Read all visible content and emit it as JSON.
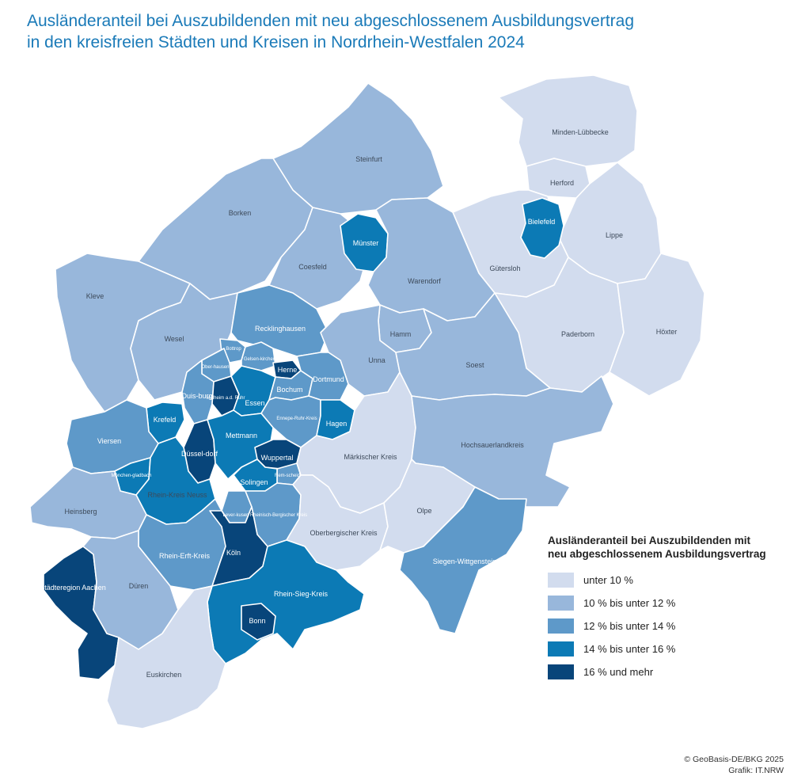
{
  "title": {
    "line1": "Ausländeranteil bei Auszubildenden mit neu abgeschlossenem Ausbildungsvertrag",
    "line2": "in den kreisfreien Städten und Kreisen in Nordrhein-Westfalen 2024"
  },
  "colors": {
    "c1": "#d2dcee",
    "c2": "#98b7db",
    "c3": "#5e99c9",
    "c4": "#0c7ab5",
    "c5": "#08457a"
  },
  "legend": {
    "title_line1": "Ausländeranteil bei Auszubildenden mit",
    "title_line2": "neu abgeschlossenem Ausbildungsvertrag",
    "items": [
      {
        "label": "unter 10 %",
        "color": "#d2dcee"
      },
      {
        "label": "10 % bis unter 12 %",
        "color": "#98b7db"
      },
      {
        "label": "12 % bis unter 14 %",
        "color": "#5e99c9"
      },
      {
        "label": "14 % bis unter 16 %",
        "color": "#0c7ab5"
      },
      {
        "label": "16 % und mehr",
        "color": "#08457a"
      }
    ]
  },
  "regions": {
    "minden_luebbecke": {
      "label": "Minden-Lübbecke",
      "class": "c1"
    },
    "herford": {
      "label": "Herford",
      "class": "c1"
    },
    "bielefeld": {
      "label": "Bielefeld",
      "class": "c4"
    },
    "lippe": {
      "label": "Lippe",
      "class": "c1"
    },
    "guetersloh": {
      "label": "Gütersloh",
      "class": "c1"
    },
    "paderborn": {
      "label": "Paderborn",
      "class": "c1"
    },
    "hoexter": {
      "label": "Höxter",
      "class": "c1"
    },
    "steinfurt": {
      "label": "Steinfurt",
      "class": "c2"
    },
    "borken": {
      "label": "Borken",
      "class": "c2"
    },
    "coesfeld": {
      "label": "Coesfeld",
      "class": "c2"
    },
    "muenster": {
      "label": "Münster",
      "class": "c4"
    },
    "warendorf": {
      "label": "Warendorf",
      "class": "c2"
    },
    "kleve": {
      "label": "Kleve",
      "class": "c2"
    },
    "wesel": {
      "label": "Wesel",
      "class": "c2"
    },
    "recklinghausen": {
      "label": "Recklinghausen",
      "class": "c3"
    },
    "hamm": {
      "label": "Hamm",
      "class": "c2"
    },
    "unna": {
      "label": "Unna",
      "class": "c2"
    },
    "soest": {
      "label": "Soest",
      "class": "c2"
    },
    "bottrop": {
      "label": "Bottrop",
      "class": "c3"
    },
    "oberhausen": {
      "label": "Ober-hausen",
      "class": "c3"
    },
    "gelsenkirchen": {
      "label": "Gelsen-kirchen",
      "class": "c3"
    },
    "herne": {
      "label": "Herne",
      "class": "c5"
    },
    "duisburg": {
      "label": "Duis-burg",
      "class": "c3"
    },
    "muelheim": {
      "label": "Mülheim a.d. Ruhr",
      "class": "c5"
    },
    "essen": {
      "label": "Essen",
      "class": "c4"
    },
    "bochum": {
      "label": "Bochum",
      "class": "c3"
    },
    "dortmund": {
      "label": "Dortmund",
      "class": "c3"
    },
    "ennepe_ruhr": {
      "label": "Ennepe-Ruhr-Kreis",
      "class": "c3"
    },
    "hagen": {
      "label": "Hagen",
      "class": "c4"
    },
    "krefeld": {
      "label": "Krefeld",
      "class": "c4"
    },
    "viersen": {
      "label": "Viersen",
      "class": "c3"
    },
    "duesseldorf": {
      "label": "Düssel-dorf",
      "class": "c5"
    },
    "mettmann": {
      "label": "Mettmann",
      "class": "c4"
    },
    "wuppertal": {
      "label": "Wuppertal",
      "class": "c5"
    },
    "remscheid": {
      "label": "Rem-scheid",
      "class": "c3"
    },
    "solingen": {
      "label": "Solingen",
      "class": "c4"
    },
    "moenchengladbach": {
      "label": "Mönchen-gladbach",
      "class": "c4"
    },
    "rhein_kreis_neuss": {
      "label": "Rhein-Kreis Neuss",
      "class": "c4"
    },
    "leverkusen": {
      "label": "Lever-kusen",
      "class": "c3"
    },
    "rheinisch_bergischer_kreis": {
      "label": "Rheinisch-Bergischer Kreis",
      "class": "c3"
    },
    "maerkischer_kreis": {
      "label": "Märkischer Kreis",
      "class": "c1"
    },
    "hochsauerlandkreis": {
      "label": "Hochsauerlandkreis",
      "class": "c2"
    },
    "heinsberg": {
      "label": "Heinsberg",
      "class": "c2"
    },
    "rhein_erft_kreis": {
      "label": "Rhein-Erft-Kreis",
      "class": "c3"
    },
    "koeln": {
      "label": "Köln",
      "class": "c5"
    },
    "oberbergischer_kreis": {
      "label": "Oberbergischer Kreis",
      "class": "c1"
    },
    "olpe": {
      "label": "Olpe",
      "class": "c1"
    },
    "siegen_wittgenstein": {
      "label": "Siegen-Wittgenstein",
      "class": "c3"
    },
    "staedteregion_aachen": {
      "label": "Städteregion Aachen",
      "class": "c5"
    },
    "dueren": {
      "label": "Düren",
      "class": "c2"
    },
    "rhein_sieg_kreis": {
      "label": "Rhein-Sieg-Kreis",
      "class": "c4"
    },
    "bonn": {
      "label": "Bonn",
      "class": "c5"
    },
    "euskirchen": {
      "label": "Euskirchen",
      "class": "c1"
    }
  },
  "credit": {
    "line1": "© GeoBasis-DE/BKG 2025",
    "line2": "Grafik: IT.NRW"
  }
}
